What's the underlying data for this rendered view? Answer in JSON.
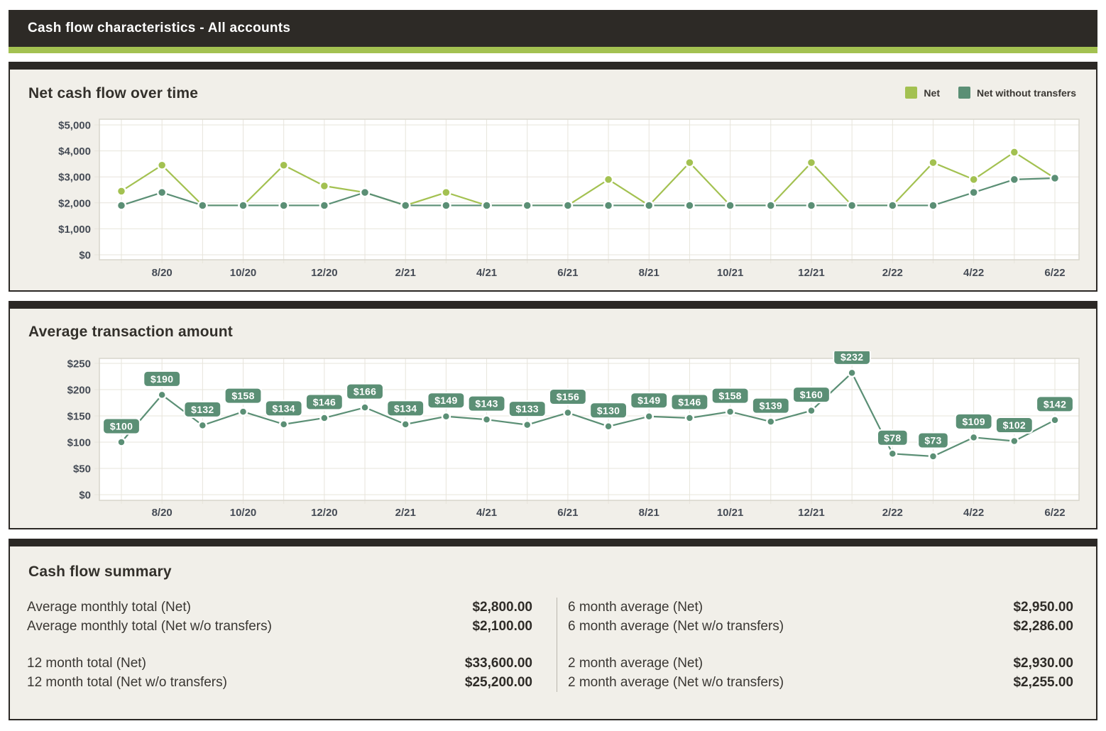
{
  "header": {
    "title": "Cash flow characteristics - All accounts"
  },
  "colors": {
    "bar_dark": "#2d2a26",
    "accent_green": "#a3c151",
    "teal": "#5b8f75",
    "panel_bg": "#f1efe9",
    "plot_border": "#d8d5cc",
    "gridline": "#e7e4db",
    "tick_text": "#454b55"
  },
  "charts": [
    {
      "title": "Net cash flow over time",
      "legend": [
        {
          "label": "Net",
          "color": "#a3c151"
        },
        {
          "label": "Net without transfers",
          "color": "#5b8f75"
        }
      ]
    },
    {
      "title": "Average transaction amount"
    }
  ],
  "summary": {
    "title": "Cash flow summary",
    "columns": [
      {
        "rows": [
          {
            "label": "Average monthly total (Net)",
            "value": "$2,800.00"
          },
          {
            "label": "Average monthly total (Net w/o transfers)",
            "value": "$2,100.00"
          },
          {
            "label": "12 month total (Net)",
            "value": "$33,600.00",
            "gap_before": true
          },
          {
            "label": "12 month total (Net w/o transfers)",
            "value": "$25,200.00"
          }
        ]
      },
      {
        "rows": [
          {
            "label": "6 month average (Net)",
            "value": "$2,950.00"
          },
          {
            "label": "6 month average (Net w/o transfers)",
            "value": "$2,286.00"
          },
          {
            "label": "2 month average (Net)",
            "value": "$2,930.00",
            "gap_before": true
          },
          {
            "label": "2 month average (Net w/o transfers)",
            "value": "$2,255.00"
          }
        ]
      }
    ]
  },
  "chart_data": [
    {
      "type": "line",
      "title": "Net cash flow over time",
      "x": [
        "7/20",
        "8/20",
        "9/20",
        "10/20",
        "11/20",
        "12/20",
        "1/21",
        "2/21",
        "3/21",
        "4/21",
        "5/21",
        "6/21",
        "7/21",
        "8/21",
        "9/21",
        "10/21",
        "11/21",
        "12/21",
        "1/22",
        "2/22",
        "3/22",
        "4/22",
        "5/22",
        "6/22"
      ],
      "x_ticks_shown": [
        "8/20",
        "10/20",
        "12/20",
        "2/21",
        "4/21",
        "6/21",
        "8/21",
        "10/21",
        "12/21",
        "2/22",
        "4/22",
        "6/22"
      ],
      "series": [
        {
          "name": "Net",
          "color": "#a3c151",
          "values": [
            2450,
            3450,
            1900,
            1900,
            3450,
            2650,
            2400,
            1900,
            2400,
            1900,
            1900,
            1900,
            2900,
            1900,
            3550,
            1900,
            1900,
            3550,
            1900,
            1900,
            3550,
            2900,
            3950,
            2950
          ]
        },
        {
          "name": "Net without transfers",
          "color": "#5b8f75",
          "values": [
            1900,
            2400,
            1900,
            1900,
            1900,
            1900,
            2400,
            1900,
            1900,
            1900,
            1900,
            1900,
            1900,
            1900,
            1900,
            1900,
            1900,
            1900,
            1900,
            1900,
            1900,
            2400,
            2900,
            2950
          ]
        }
      ],
      "ylim": [
        0,
        5000
      ],
      "ytick_step": 1000,
      "ytick_labels": [
        "$0",
        "$1,000",
        "$2,000",
        "$3,000",
        "$4,000",
        "$5,000"
      ],
      "grid": true,
      "legend_position": "top-right"
    },
    {
      "type": "line",
      "title": "Average transaction amount",
      "x": [
        "7/20",
        "8/20",
        "9/20",
        "10/20",
        "11/20",
        "12/20",
        "1/21",
        "2/21",
        "3/21",
        "4/21",
        "5/21",
        "6/21",
        "7/21",
        "8/21",
        "9/21",
        "10/21",
        "11/21",
        "12/21",
        "1/22",
        "2/22",
        "3/22",
        "4/22",
        "5/22",
        "6/22"
      ],
      "x_ticks_shown": [
        "8/20",
        "10/20",
        "12/20",
        "2/21",
        "4/21",
        "6/21",
        "8/21",
        "10/21",
        "12/21",
        "2/22",
        "4/22",
        "6/22"
      ],
      "series": [
        {
          "name": "Average transaction amount",
          "color": "#5b8f75",
          "data_labels": true,
          "values": [
            100,
            190,
            132,
            158,
            134,
            146,
            166,
            134,
            149,
            143,
            133,
            156,
            130,
            149,
            146,
            158,
            139,
            160,
            232,
            78,
            73,
            109,
            102,
            142
          ]
        }
      ],
      "ylim": [
        0,
        250
      ],
      "ytick_step": 50,
      "ytick_labels": [
        "$0",
        "$50",
        "$100",
        "$150",
        "$200",
        "$250"
      ],
      "grid": true
    }
  ]
}
